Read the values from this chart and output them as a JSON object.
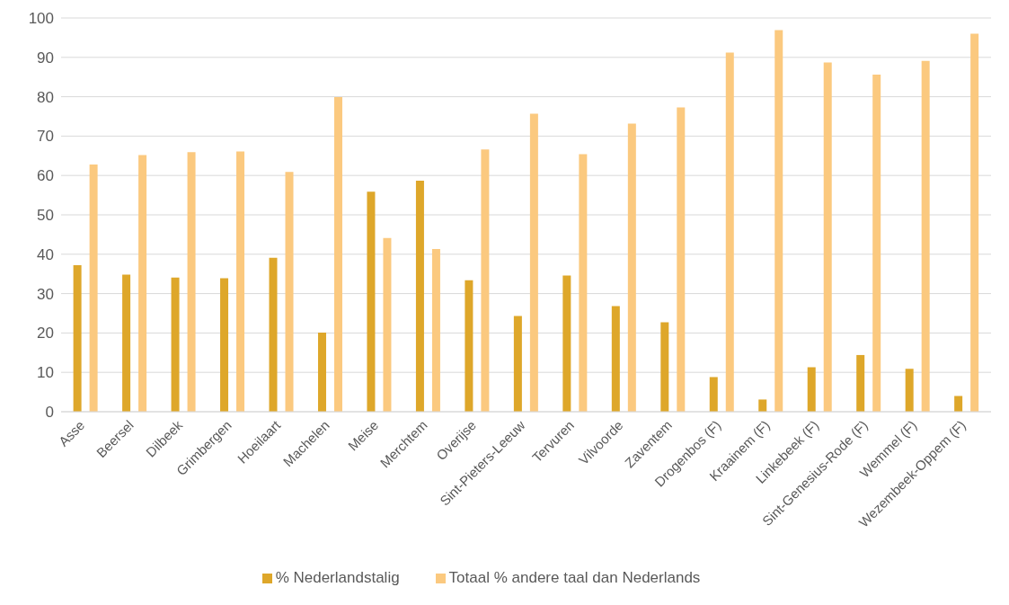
{
  "chart_data": {
    "type": "bar",
    "categories": [
      "Asse",
      "Beersel",
      "Dilbeek",
      "Grimbergen",
      "Hoeilaart",
      "Machelen",
      "Meise",
      "Merchtem",
      "Overijse",
      "Sint-Pieters-Leeuw",
      "Tervuren",
      "Vilvoorde",
      "Zaventem",
      "Drogenbos (F)",
      "Kraainem (F)",
      "Linkebeek (F)",
      "Sint-Genesius-Rode (F)",
      "Wemmel (F)",
      "Wezembeek-Oppem (F)"
    ],
    "series": [
      {
        "name": "% Nederlandstalig",
        "color": "#dea72a",
        "values": [
          37.2,
          34.8,
          34.1,
          33.9,
          39.1,
          20.1,
          55.9,
          58.7,
          33.4,
          24.3,
          34.6,
          26.8,
          22.7,
          8.8,
          3.1,
          11.3,
          14.4,
          10.9,
          4.0
        ]
      },
      {
        "name": "Totaal % andere taal dan Nederlands",
        "color": "#fbc97f",
        "values": [
          62.8,
          65.2,
          65.9,
          66.1,
          60.9,
          79.9,
          44.1,
          41.3,
          66.6,
          75.7,
          65.4,
          73.2,
          77.3,
          91.2,
          96.9,
          88.7,
          85.6,
          89.1,
          96.0
        ]
      }
    ],
    "ylim": [
      0,
      100
    ],
    "yticks": [
      0,
      10,
      20,
      30,
      40,
      50,
      60,
      70,
      80,
      90,
      100
    ],
    "grid": "y",
    "legend": "bottom"
  }
}
